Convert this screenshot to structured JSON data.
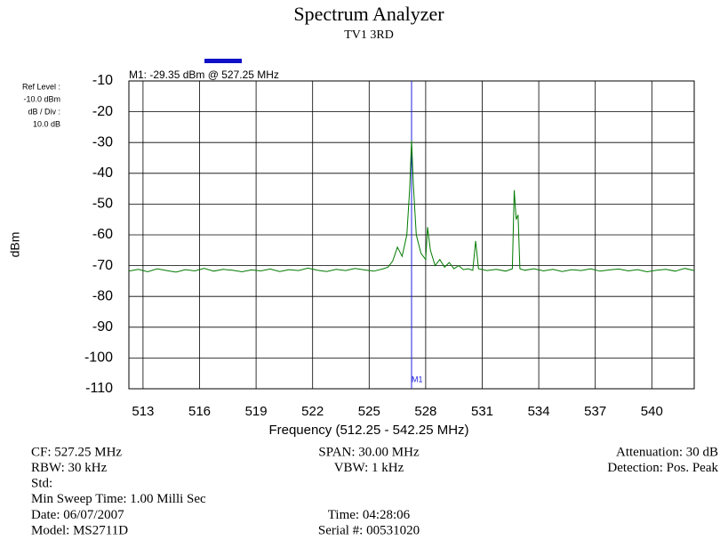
{
  "chart_data": {
    "type": "line",
    "title": "Spectrum Analyzer",
    "subtitle": "TV1 3RD",
    "x_label": "Frequency (512.25 - 542.25 MHz)",
    "y_label": "dBm",
    "info": [
      "Ref Level :",
      "-10.0  dBm",
      "dB / Div :",
      "10.0 dB"
    ],
    "marker": {
      "label": "M1",
      "x": 527.25,
      "annotation": "M1: -29.35 dBm @ 527.25 MHz"
    },
    "color": "#007a00",
    "grid": true,
    "xlim": [
      512.25,
      542.25
    ],
    "xticks": [
      513,
      516,
      519,
      522,
      525,
      528,
      531,
      534,
      537,
      540
    ],
    "ylim": [
      -110,
      -10
    ],
    "yticks": [
      -10,
      -20,
      -30,
      -40,
      -50,
      -60,
      -70,
      -80,
      -90,
      -100,
      -110
    ],
    "x": [
      512.25,
      512.75,
      513.25,
      513.75,
      514.25,
      514.75,
      515.25,
      515.75,
      516.25,
      516.75,
      517.25,
      517.75,
      518.25,
      518.75,
      519.25,
      519.75,
      520.25,
      520.75,
      521.25,
      521.75,
      522.25,
      522.75,
      523.25,
      523.75,
      524.25,
      524.75,
      525.25,
      525.75,
      526.0,
      526.25,
      526.5,
      526.75,
      527.0,
      527.15,
      527.25,
      527.35,
      527.5,
      527.75,
      528.0,
      528.1,
      528.25,
      528.5,
      528.75,
      529.0,
      529.25,
      529.5,
      529.75,
      530.0,
      530.25,
      530.5,
      530.65,
      530.8,
      531.25,
      531.75,
      532.25,
      532.6,
      532.7,
      532.8,
      532.9,
      533.0,
      533.25,
      533.75,
      534.25,
      534.75,
      535.25,
      535.75,
      536.25,
      536.75,
      537.25,
      537.75,
      538.25,
      538.75,
      539.25,
      539.75,
      540.25,
      540.75,
      541.25,
      541.75,
      542.25
    ],
    "values": [
      -71.8,
      -71.2,
      -72.0,
      -71.0,
      -71.6,
      -72.1,
      -71.3,
      -71.7,
      -70.9,
      -71.8,
      -71.2,
      -71.5,
      -72.0,
      -71.4,
      -71.7,
      -71.1,
      -71.9,
      -71.3,
      -71.6,
      -70.8,
      -71.5,
      -71.9,
      -71.2,
      -71.6,
      -70.9,
      -71.4,
      -71.8,
      -71.0,
      -70.5,
      -68.5,
      -64,
      -67,
      -60,
      -45,
      -29.35,
      -44,
      -60,
      -66,
      -68,
      -57.5,
      -65,
      -70,
      -68,
      -70.5,
      -69,
      -71,
      -70,
      -71.3,
      -71,
      -71.5,
      -62,
      -71,
      -71.6,
      -71.2,
      -71.8,
      -71,
      -45.5,
      -55,
      -53.5,
      -71,
      -71.5,
      -71.0,
      -71.7,
      -71.2,
      -71.9,
      -71.3,
      -71.6,
      -71.0,
      -71.8,
      -71.4,
      -71.1,
      -71.7,
      -71.3,
      -72.0,
      -71.5,
      -71.2,
      -71.8,
      -70.9,
      -71.6
    ],
    "footer": [
      [
        "CF: 527.25 MHz",
        "SPAN: 30.00 MHz",
        "Attenuation: 30 dB"
      ],
      [
        "RBW: 30 kHz",
        "VBW: 1 kHz",
        "Detection: Pos. Peak"
      ],
      [
        "Std:"
      ],
      [
        "Min Sweep Time: 1.00 Milli Sec"
      ],
      [
        "Date: 06/07/2007",
        "Time: 04:28:06"
      ],
      [
        "Model: MS2711D",
        "Serial #: 00531020"
      ]
    ]
  }
}
